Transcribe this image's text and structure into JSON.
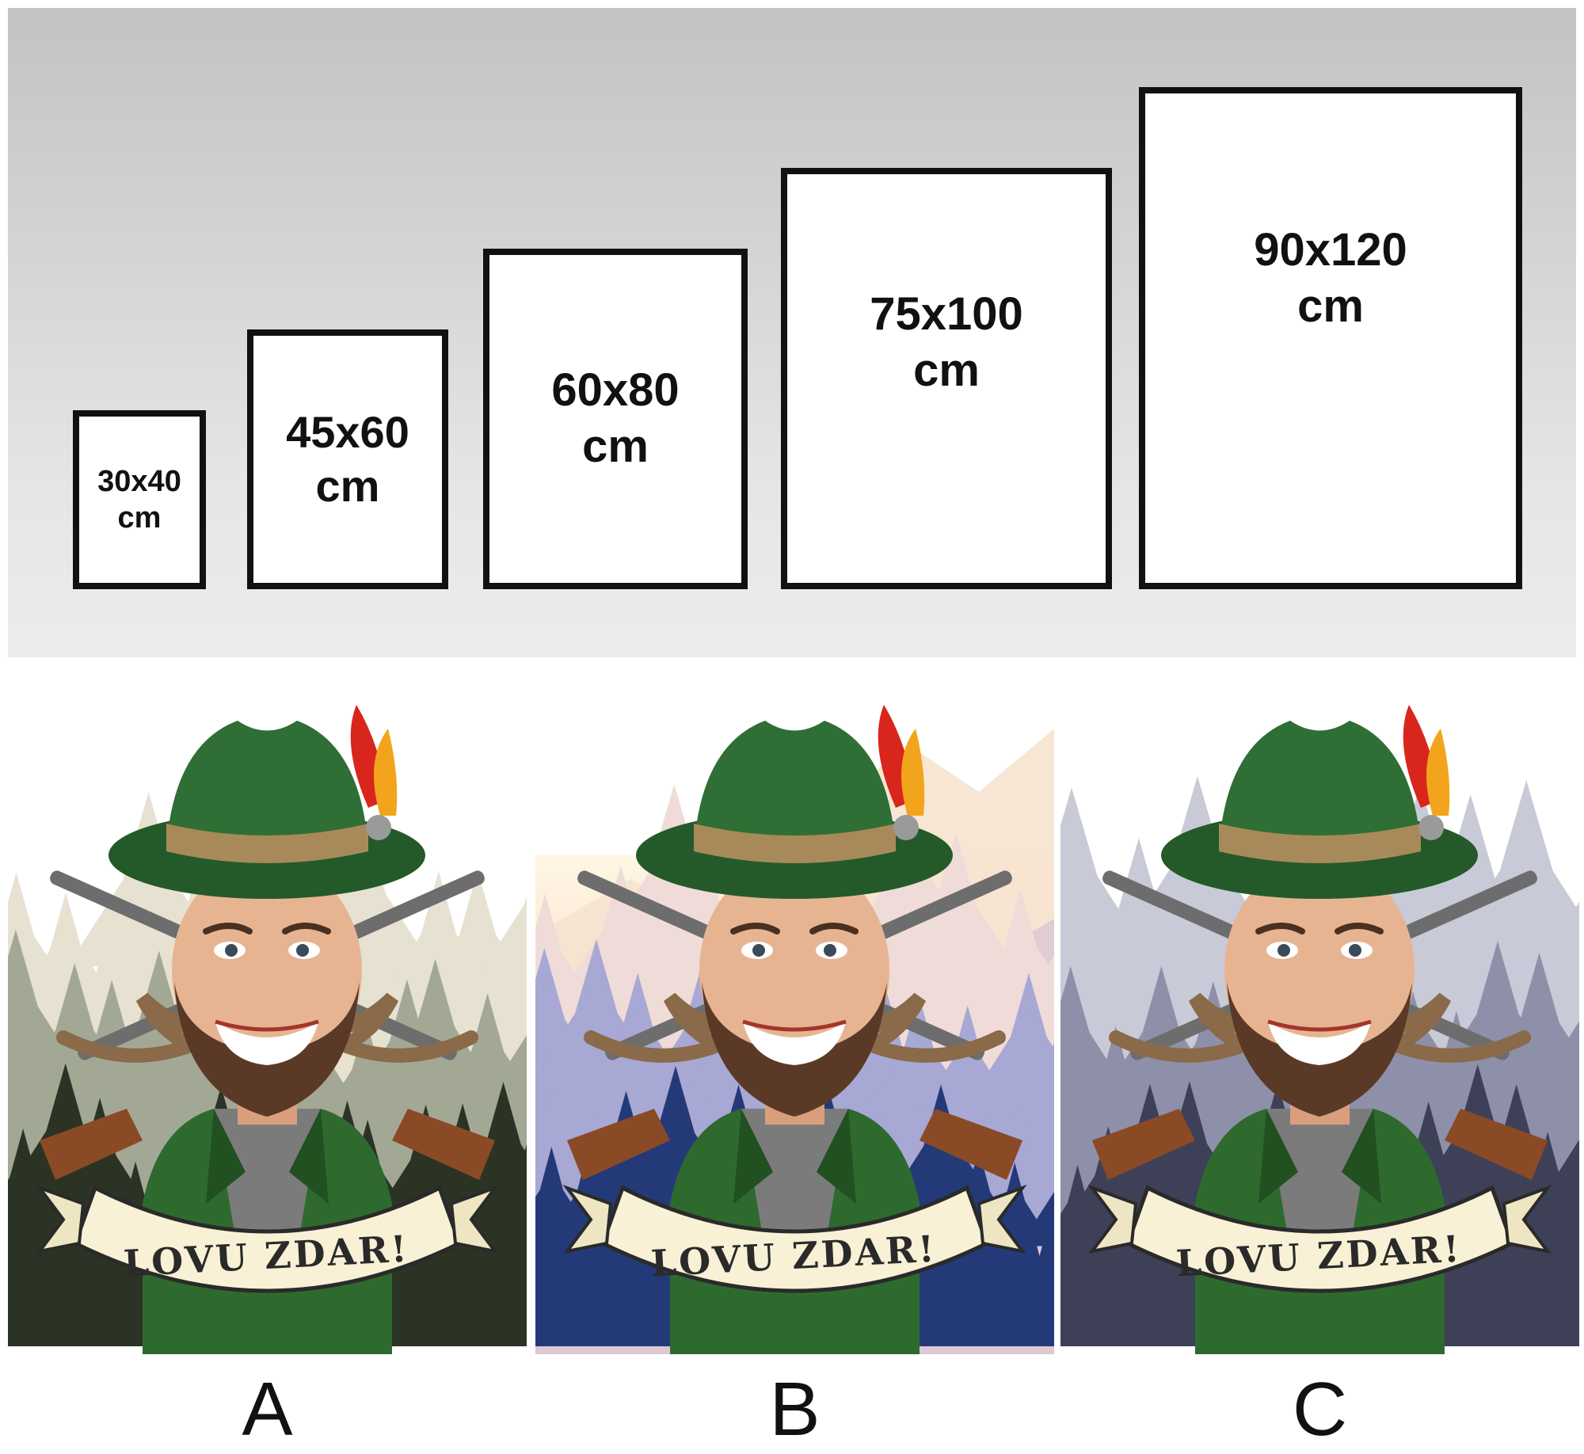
{
  "sizes": [
    {
      "line1": "30x40",
      "line2": "cm"
    },
    {
      "line1": "45x60",
      "line2": "cm"
    },
    {
      "line1": "60x80",
      "line2": "cm"
    },
    {
      "line1": "75x100",
      "line2": "cm"
    },
    {
      "line1": "90x120",
      "line2": "cm"
    }
  ],
  "variants": [
    {
      "letter": "A",
      "banner_text": "LOVU ZDAR!",
      "background": "forest-sepia",
      "sky_color": "#ffffff",
      "far_tree_color": "#e7e1d2",
      "mid_tree_color": "#a3a895",
      "near_tree_color": "#2b3325"
    },
    {
      "letter": "B",
      "banner_text": "LOVU ZDAR!",
      "background": "mountains-sunrise",
      "sky_color": "#fbe7c8",
      "far_tree_color": "#efdcd8",
      "mid_tree_color": "#a7a8d4",
      "near_tree_color": "#243a78"
    },
    {
      "letter": "C",
      "banner_text": "LOVU ZDAR!",
      "background": "forest-blue-grey",
      "sky_color": "#ffffff",
      "far_tree_color": "#c9cad8",
      "mid_tree_color": "#8d90a8",
      "near_tree_color": "#3d4057"
    }
  ],
  "colors": {
    "hat": "#2f6e34",
    "hat_band": "#a88a5a",
    "jacket": "#2e6a2e",
    "shirt": "#7b7b7b",
    "skin": "#e7b492",
    "beard": "#5a3a26",
    "banner": "#f8f1d6",
    "feather_red": "#d9261c",
    "feather_orange": "#f2a51c"
  }
}
